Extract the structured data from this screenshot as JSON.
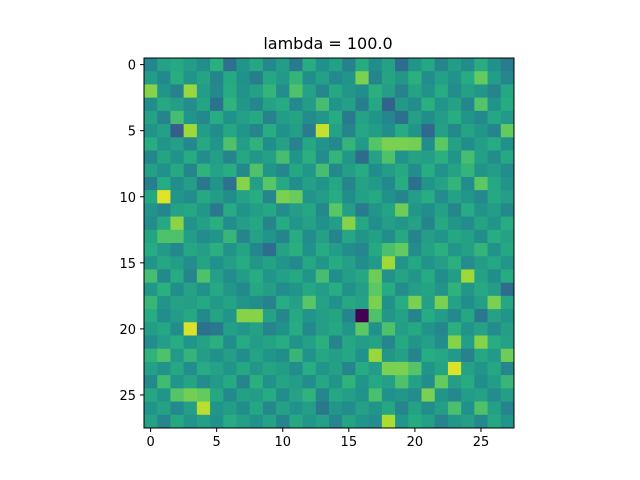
{
  "chart_data": {
    "type": "heatmap",
    "title": "lambda = 100.0",
    "xlabel": "",
    "ylabel": "",
    "rows": 28,
    "cols": 28,
    "xlim": [
      -0.5,
      27.5
    ],
    "ylim": [
      27.5,
      -0.5
    ],
    "x_ticks": [
      0,
      5,
      10,
      15,
      20,
      25
    ],
    "y_ticks": [
      0,
      5,
      10,
      15,
      20,
      25
    ],
    "x_tick_labels": [
      "0",
      "5",
      "10",
      "15",
      "20",
      "25"
    ],
    "y_tick_labels": [
      "0",
      "5",
      "10",
      "15",
      "20",
      "25"
    ],
    "colormap": "viridis",
    "grid": false,
    "values": [
      [
        0.46,
        0.58,
        0.61,
        0.55,
        0.49,
        0.64,
        0.38,
        0.52,
        0.6,
        0.47,
        0.55,
        0.41,
        0.63,
        0.5,
        0.57,
        0.44,
        0.62,
        0.49,
        0.58,
        0.36,
        0.52,
        0.6,
        0.45,
        0.55,
        0.48,
        0.63,
        0.5,
        0.42
      ],
      [
        0.55,
        0.47,
        0.63,
        0.52,
        0.59,
        0.45,
        0.61,
        0.5,
        0.43,
        0.6,
        0.54,
        0.66,
        0.49,
        0.57,
        0.47,
        0.52,
        0.8,
        0.45,
        0.59,
        0.53,
        0.64,
        0.48,
        0.57,
        0.51,
        0.62,
        0.76,
        0.55,
        0.46
      ],
      [
        0.82,
        0.52,
        0.44,
        0.85,
        0.55,
        0.47,
        0.62,
        0.51,
        0.57,
        0.66,
        0.48,
        0.72,
        0.58,
        0.46,
        0.6,
        0.53,
        0.49,
        0.64,
        0.56,
        0.44,
        0.59,
        0.51,
        0.62,
        0.48,
        0.57,
        0.53,
        0.45,
        0.6
      ],
      [
        0.49,
        0.61,
        0.56,
        0.48,
        0.59,
        0.38,
        0.65,
        0.53,
        0.46,
        0.58,
        0.62,
        0.47,
        0.55,
        0.7,
        0.52,
        0.57,
        0.43,
        0.6,
        0.32,
        0.54,
        0.48,
        0.64,
        0.52,
        0.58,
        0.46,
        0.73,
        0.51,
        0.62
      ],
      [
        0.58,
        0.45,
        0.7,
        0.52,
        0.47,
        0.63,
        0.5,
        0.57,
        0.61,
        0.44,
        0.55,
        0.59,
        0.48,
        0.53,
        0.62,
        0.41,
        0.58,
        0.52,
        0.46,
        0.37,
        0.57,
        0.49,
        0.55,
        0.63,
        0.52,
        0.47,
        0.6,
        0.54
      ],
      [
        0.51,
        0.57,
        0.3,
        0.86,
        0.55,
        0.49,
        0.6,
        0.52,
        0.45,
        0.63,
        0.5,
        0.56,
        0.42,
        0.92,
        0.58,
        0.45,
        0.6,
        0.55,
        0.49,
        0.62,
        0.52,
        0.34,
        0.57,
        0.47,
        0.59,
        0.53,
        0.45,
        0.76
      ],
      [
        0.63,
        0.52,
        0.56,
        0.47,
        0.61,
        0.52,
        0.72,
        0.55,
        0.65,
        0.49,
        0.58,
        0.44,
        0.6,
        0.52,
        0.47,
        0.66,
        0.54,
        0.73,
        0.8,
        0.8,
        0.79,
        0.48,
        0.75,
        0.58,
        0.49,
        0.56,
        0.62,
        0.5
      ],
      [
        0.46,
        0.59,
        0.51,
        0.62,
        0.48,
        0.56,
        0.45,
        0.6,
        0.53,
        0.57,
        0.7,
        0.52,
        0.64,
        0.48,
        0.66,
        0.53,
        0.35,
        0.58,
        0.72,
        0.51,
        0.58,
        0.56,
        0.64,
        0.52,
        0.7,
        0.57,
        0.49,
        0.61
      ],
      [
        0.57,
        0.5,
        0.61,
        0.45,
        0.65,
        0.58,
        0.63,
        0.47,
        0.72,
        0.52,
        0.46,
        0.6,
        0.53,
        0.7,
        0.47,
        0.56,
        0.62,
        0.49,
        0.55,
        0.61,
        0.48,
        0.63,
        0.51,
        0.58,
        0.66,
        0.52,
        0.55,
        0.48
      ],
      [
        0.43,
        0.62,
        0.49,
        0.56,
        0.4,
        0.52,
        0.38,
        0.82,
        0.56,
        0.74,
        0.61,
        0.49,
        0.57,
        0.52,
        0.6,
        0.45,
        0.58,
        0.54,
        0.47,
        0.63,
        0.37,
        0.52,
        0.58,
        0.66,
        0.48,
        0.75,
        0.6,
        0.52
      ],
      [
        0.6,
        0.96,
        0.52,
        0.48,
        0.61,
        0.55,
        0.49,
        0.58,
        0.63,
        0.46,
        0.8,
        0.77,
        0.52,
        0.55,
        0.62,
        0.49,
        0.57,
        0.61,
        0.5,
        0.45,
        0.56,
        0.63,
        0.48,
        0.58,
        0.53,
        0.47,
        0.61,
        0.56
      ],
      [
        0.52,
        0.46,
        0.58,
        0.6,
        0.53,
        0.4,
        0.62,
        0.51,
        0.56,
        0.6,
        0.48,
        0.55,
        0.6,
        0.47,
        0.74,
        0.56,
        0.41,
        0.52,
        0.59,
        0.78,
        0.53,
        0.49,
        0.57,
        0.46,
        0.62,
        0.51,
        0.55,
        0.47
      ],
      [
        0.48,
        0.61,
        0.83,
        0.51,
        0.57,
        0.64,
        0.48,
        0.56,
        0.6,
        0.45,
        0.62,
        0.52,
        0.58,
        0.5,
        0.55,
        0.82,
        0.6,
        0.49,
        0.56,
        0.53,
        0.58,
        0.45,
        0.61,
        0.53,
        0.48,
        0.59,
        0.52,
        0.63
      ],
      [
        0.59,
        0.72,
        0.72,
        0.55,
        0.48,
        0.52,
        0.67,
        0.45,
        0.58,
        0.52,
        0.45,
        0.62,
        0.48,
        0.57,
        0.45,
        0.6,
        0.52,
        0.57,
        0.49,
        0.61,
        0.45,
        0.56,
        0.52,
        0.6,
        0.57,
        0.49,
        0.63,
        0.58
      ],
      [
        0.62,
        0.54,
        0.47,
        0.6,
        0.56,
        0.64,
        0.51,
        0.59,
        0.46,
        0.36,
        0.58,
        0.64,
        0.5,
        0.62,
        0.55,
        0.48,
        0.46,
        0.61,
        0.71,
        0.76,
        0.48,
        0.58,
        0.64,
        0.53,
        0.57,
        0.66,
        0.51,
        0.6
      ],
      [
        0.52,
        0.6,
        0.55,
        0.48,
        0.59,
        0.5,
        0.56,
        0.62,
        0.53,
        0.58,
        0.52,
        0.47,
        0.6,
        0.53,
        0.62,
        0.57,
        0.49,
        0.54,
        0.86,
        0.52,
        0.6,
        0.51,
        0.56,
        0.64,
        0.48,
        0.55,
        0.6,
        0.53
      ],
      [
        0.7,
        0.47,
        0.62,
        0.45,
        0.72,
        0.57,
        0.48,
        0.55,
        0.63,
        0.52,
        0.57,
        0.61,
        0.52,
        0.7,
        0.49,
        0.56,
        0.6,
        0.78,
        0.51,
        0.59,
        0.53,
        0.62,
        0.48,
        0.55,
        0.86,
        0.58,
        0.49,
        0.62
      ],
      [
        0.53,
        0.64,
        0.49,
        0.58,
        0.5,
        0.61,
        0.53,
        0.47,
        0.6,
        0.56,
        0.48,
        0.52,
        0.6,
        0.55,
        0.63,
        0.5,
        0.56,
        0.75,
        0.62,
        0.48,
        0.56,
        0.59,
        0.52,
        0.65,
        0.53,
        0.61,
        0.55,
        0.35
      ],
      [
        0.67,
        0.52,
        0.58,
        0.56,
        0.61,
        0.54,
        0.59,
        0.52,
        0.49,
        0.44,
        0.63,
        0.57,
        0.74,
        0.58,
        0.5,
        0.61,
        0.58,
        0.8,
        0.5,
        0.63,
        0.8,
        0.57,
        0.8,
        0.58,
        0.49,
        0.56,
        0.8,
        0.6
      ],
      [
        0.62,
        0.48,
        0.55,
        0.61,
        0.47,
        0.59,
        0.52,
        0.82,
        0.82,
        0.58,
        0.46,
        0.61,
        0.52,
        0.56,
        0.59,
        0.45,
        0.0,
        0.72,
        0.53,
        0.58,
        0.45,
        0.62,
        0.55,
        0.47,
        0.6,
        0.4,
        0.58,
        0.52
      ],
      [
        0.55,
        0.6,
        0.49,
        0.95,
        0.38,
        0.4,
        0.57,
        0.53,
        0.58,
        0.45,
        0.5,
        0.62,
        0.47,
        0.56,
        0.6,
        0.52,
        0.75,
        0.5,
        0.72,
        0.56,
        0.61,
        0.52,
        0.46,
        0.64,
        0.52,
        0.58,
        0.48,
        0.56
      ],
      [
        0.48,
        0.56,
        0.63,
        0.52,
        0.58,
        0.64,
        0.49,
        0.62,
        0.55,
        0.59,
        0.63,
        0.51,
        0.57,
        0.64,
        0.45,
        0.6,
        0.55,
        0.58,
        0.46,
        0.61,
        0.52,
        0.57,
        0.48,
        0.82,
        0.56,
        0.82,
        0.63,
        0.58
      ],
      [
        0.65,
        0.72,
        0.54,
        0.66,
        0.55,
        0.5,
        0.56,
        0.48,
        0.59,
        0.52,
        0.49,
        0.67,
        0.51,
        0.6,
        0.56,
        0.6,
        0.5,
        0.85,
        0.53,
        0.57,
        0.45,
        0.63,
        0.6,
        0.54,
        0.44,
        0.6,
        0.54,
        0.78
      ],
      [
        0.57,
        0.51,
        0.6,
        0.48,
        0.62,
        0.58,
        0.52,
        0.6,
        0.53,
        0.59,
        0.55,
        0.48,
        0.63,
        0.52,
        0.57,
        0.45,
        0.62,
        0.55,
        0.8,
        0.8,
        0.73,
        0.52,
        0.59,
        0.95,
        0.58,
        0.52,
        0.6,
        0.46
      ],
      [
        0.47,
        0.69,
        0.52,
        0.59,
        0.48,
        0.54,
        0.61,
        0.45,
        0.64,
        0.5,
        0.59,
        0.55,
        0.48,
        0.6,
        0.52,
        0.65,
        0.52,
        0.6,
        0.57,
        0.72,
        0.57,
        0.49,
        0.76,
        0.56,
        0.62,
        0.49,
        0.55,
        0.67
      ],
      [
        0.6,
        0.52,
        0.73,
        0.79,
        0.76,
        0.6,
        0.47,
        0.57,
        0.55,
        0.62,
        0.48,
        0.58,
        0.65,
        0.46,
        0.6,
        0.56,
        0.51,
        0.71,
        0.5,
        0.53,
        0.48,
        0.8,
        0.52,
        0.47,
        0.55,
        0.58,
        0.48,
        0.56
      ],
      [
        0.52,
        0.58,
        0.47,
        0.56,
        0.9,
        0.52,
        0.55,
        0.49,
        0.6,
        0.47,
        0.58,
        0.51,
        0.56,
        0.4,
        0.53,
        0.48,
        0.57,
        0.52,
        0.6,
        0.45,
        0.58,
        0.49,
        0.56,
        0.71,
        0.5,
        0.72,
        0.57,
        0.45
      ],
      [
        0.58,
        0.46,
        0.6,
        0.52,
        0.57,
        0.5,
        0.62,
        0.56,
        0.51,
        0.58,
        0.45,
        0.6,
        0.53,
        0.57,
        0.46,
        0.59,
        0.52,
        0.48,
        0.88,
        0.53,
        0.62,
        0.57,
        0.45,
        0.53,
        0.56,
        0.47,
        0.6,
        0.52
      ]
    ]
  }
}
